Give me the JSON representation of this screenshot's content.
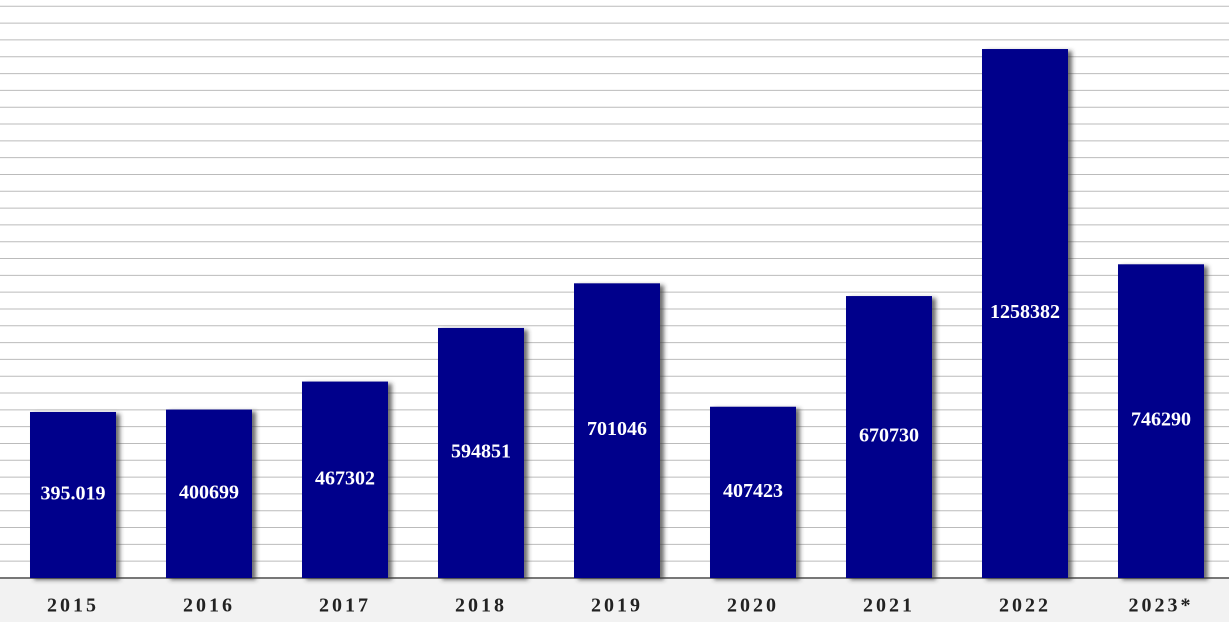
{
  "chart_data": {
    "type": "bar",
    "categories": [
      "2015",
      "2016",
      "2017",
      "2018",
      "2019",
      "2020",
      "2021",
      "2022",
      "2023*"
    ],
    "values": [
      395019,
      400699,
      467302,
      594851,
      701046,
      407423,
      670730,
      1258382,
      746290
    ],
    "value_labels": [
      "395.019",
      "400699",
      "467302",
      "594851",
      "701046",
      "407423",
      "670730",
      "1258382",
      "746290"
    ],
    "color": "#00008b",
    "ylim": [
      0,
      1375000
    ],
    "yticks": [
      0,
      40000,
      80000,
      120000,
      160000,
      200000,
      240000,
      280000,
      320000,
      360000,
      400000,
      440000,
      480000,
      520000,
      560000,
      600000,
      640000,
      680000,
      720000,
      760000,
      800000,
      840000,
      880000,
      920000,
      960000,
      1000000,
      1040000,
      1080000,
      1120000,
      1160000,
      1200000,
      1240000,
      1280000,
      1320000,
      1360000
    ],
    "grid": true
  }
}
